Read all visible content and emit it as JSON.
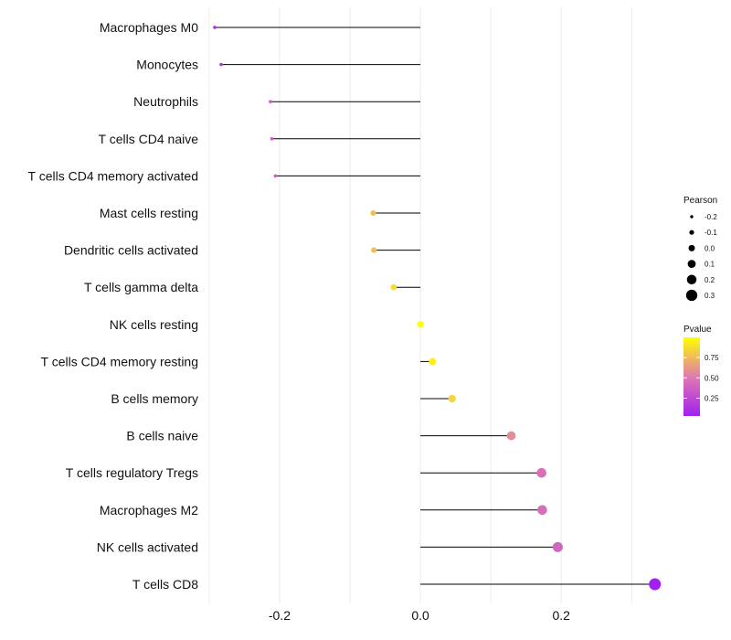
{
  "chart_data": {
    "type": "lollipop",
    "title": "",
    "xlabel": "",
    "ylabel": "",
    "xlim": [
      -0.305,
      0.345
    ],
    "xticks": [
      -0.2,
      0.0,
      0.2
    ],
    "xtick_labels": [
      "-0.2",
      "0.0",
      "0.2"
    ],
    "baseline": 0.0,
    "points": [
      {
        "label": "Macrophages M0",
        "pearson": -0.292,
        "pvalue": 0.1
      },
      {
        "label": "Monocytes",
        "pearson": -0.283,
        "pvalue": 0.15
      },
      {
        "label": "Neutrophils",
        "pearson": -0.213,
        "pvalue": 0.35
      },
      {
        "label": "T cells CD4 naive",
        "pearson": -0.211,
        "pvalue": 0.36
      },
      {
        "label": "T cells CD4 memory activated",
        "pearson": -0.206,
        "pvalue": 0.37
      },
      {
        "label": "Mast cells resting",
        "pearson": -0.067,
        "pvalue": 0.76
      },
      {
        "label": "Dendritic cells activated",
        "pearson": -0.066,
        "pvalue": 0.77
      },
      {
        "label": "T cells gamma delta",
        "pearson": -0.038,
        "pvalue": 0.87
      },
      {
        "label": "NK cells resting",
        "pearson": 0.0,
        "pvalue": 1.0
      },
      {
        "label": "T cells CD4 memory resting",
        "pearson": 0.017,
        "pvalue": 0.94
      },
      {
        "label": "B cells memory",
        "pearson": 0.045,
        "pvalue": 0.85
      },
      {
        "label": "B cells naive",
        "pearson": 0.129,
        "pvalue": 0.58
      },
      {
        "label": "T cells regulatory  Tregs ",
        "pearson": 0.172,
        "pvalue": 0.46
      },
      {
        "label": "Macrophages M2",
        "pearson": 0.173,
        "pvalue": 0.45
      },
      {
        "label": "NK cells activated",
        "pearson": 0.195,
        "pvalue": 0.4
      },
      {
        "label": "T cells CD8",
        "pearson": 0.333,
        "pvalue": 0.03
      }
    ],
    "legend": {
      "size_title": "Pearson",
      "size_values": [
        -0.2,
        -0.1,
        0.0,
        0.1,
        0.2,
        0.3
      ],
      "size_labels": [
        "-0.2",
        "-0.1",
        "0.0",
        "0.1",
        "0.2",
        "0.3"
      ],
      "color_title": "Pvalue",
      "color_ticks": [
        0.25,
        0.5,
        0.75
      ],
      "color_tick_labels": [
        "0.25",
        "0.50",
        "0.75"
      ],
      "color_range": [
        0.03,
        1.0
      ],
      "position": "right"
    },
    "colors": {
      "low": "#a020f0",
      "mid": "#e07ab0",
      "high": "#ffff00",
      "stem": "#000000",
      "grid": "#ebebeb",
      "legend_dot": "#000000"
    }
  }
}
